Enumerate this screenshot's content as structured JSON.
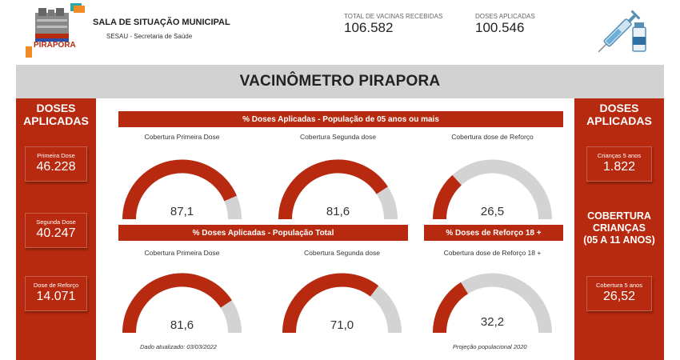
{
  "header": {
    "logo_text": "PIRAPORA",
    "org_title": "SALA DE SITUAÇÃO MUNICIPAL",
    "org_subtitle": "SESAU - Secretaria de Saúde",
    "kpis": [
      {
        "label": "TOTAL DE VACINAS RECEBIDAS",
        "value": "106.582"
      },
      {
        "label": "DOSES APLICADAS",
        "value": "100.546"
      }
    ],
    "syringe_icon": "syringe-vial-icon"
  },
  "title": "VACINÔMETRO PIRAPORA",
  "left_panel": {
    "heading_line1": "DOSES",
    "heading_line2": "APLICADAS",
    "cards": [
      {
        "label": "Primeira Dose",
        "value": "46.228"
      },
      {
        "label": "Segunda Dose",
        "value": "40.247"
      },
      {
        "label": "Dose de Reforço",
        "value": "14.071"
      }
    ]
  },
  "right_panel": {
    "heading_line1": "DOSES",
    "heading_line2": "APLICADAS",
    "card_top": {
      "label": "Crianças 5 anos",
      "value": "1.822"
    },
    "coverage_line1": "COBERTURA",
    "coverage_line2": "CRIANÇAS",
    "coverage_line3": "(05 A 11 ANOS)",
    "card_bottom": {
      "label": "Cobertura 5 anos",
      "value": "26,52"
    }
  },
  "sections": {
    "pop5": "% Doses Aplicadas - População de 05 anos ou mais",
    "total": "% Doses Aplicadas - População Total",
    "booster18": "% Doses de Reforço 18 +"
  },
  "gauges": {
    "g1": {
      "caption": "Cobertura Primeira Dose",
      "value_text": "87,1",
      "fraction": 0.871
    },
    "g2": {
      "caption": "Cobertura Segunda dose",
      "value_text": "81,6",
      "fraction": 0.816
    },
    "g3": {
      "caption": "Cobertura dose de Reforço",
      "value_text": "26,5",
      "fraction": 0.265
    },
    "g4": {
      "caption": "Cobertura Primeira Dose",
      "value_text": "81,6",
      "fraction": 0.816
    },
    "g5": {
      "caption": "Cobertura Segunda dose",
      "value_text": "71,0",
      "fraction": 0.71
    },
    "g6": {
      "caption": "Cobertura dose de Reforço 18 +",
      "value_text": "32,2",
      "fraction": 0.322
    }
  },
  "footnotes": {
    "updated": "Dado atualizado: 03/03/2022",
    "projection": "Projeção populacional 2020"
  },
  "colors": {
    "accent": "#b82a0f",
    "gauge_track": "#d3d3d3",
    "band": "#d2d2d2"
  }
}
